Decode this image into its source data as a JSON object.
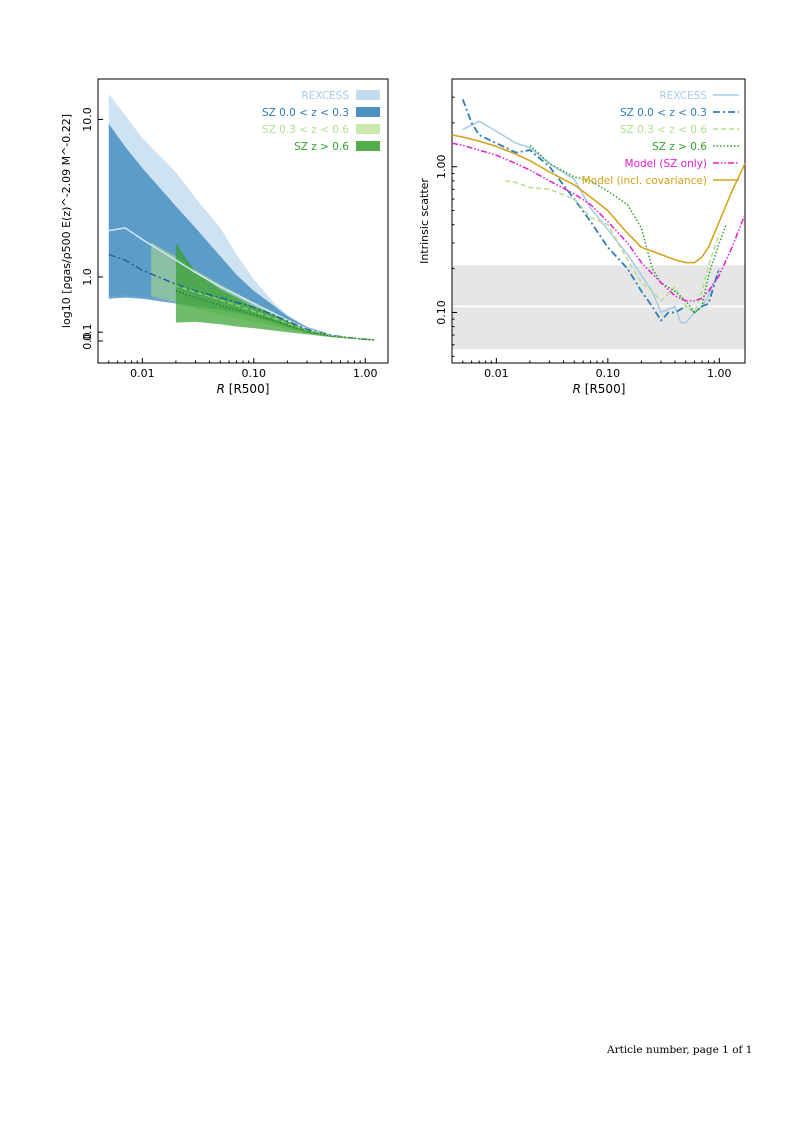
{
  "page": {
    "footer": "Article number, page 1 of 1"
  },
  "colors": {
    "rexcess": "#a6cbe6",
    "sz_low": "#2c7fb8",
    "sz_mid": "#b2df8a",
    "sz_high": "#33a02c",
    "model_sz": "#e71bd0",
    "model_cov": "#d4a017",
    "gray_band": "#e6e6e6"
  },
  "chart_data": [
    {
      "type": "area",
      "xlabel_main": "R",
      "xlabel_unit": "[R500]",
      "ylabel": "log10 [ρgas/ρ500 E(z)^-2.09 M^-0.22]",
      "xscale": "log",
      "yscale": "log",
      "xlim": [
        0.004,
        1.6
      ],
      "ylim": [
        0.0,
        10.0
      ],
      "x_ticks": [
        "0.01",
        "0.10",
        "1.00"
      ],
      "y_ticks": [
        "0.0",
        "0.1",
        "1.0",
        "10.0"
      ],
      "legend_position": "top-right",
      "series": [
        {
          "name": "REXCESS",
          "style": "band",
          "x": [
            0.005,
            0.007,
            0.01,
            0.02,
            0.03,
            0.05,
            0.07,
            0.1,
            0.15,
            0.2,
            0.3,
            0.5,
            0.7,
            1.0,
            1.2
          ],
          "upper": [
            13.5,
            10.5,
            8.0,
            5.2,
            3.7,
            2.4,
            1.55,
            0.95,
            0.52,
            0.33,
            0.17,
            0.075,
            0.045,
            0.022,
            0.015
          ],
          "lower": [
            0.62,
            0.64,
            0.62,
            0.55,
            0.48,
            0.4,
            0.35,
            0.3,
            0.23,
            0.17,
            0.1,
            0.05,
            0.032,
            0.017,
            0.012
          ],
          "median": [
            2.3,
            2.4,
            2.0,
            1.4,
            1.1,
            0.8,
            0.65,
            0.5,
            0.35,
            0.25,
            0.14,
            0.065,
            0.04,
            0.02,
            0.014
          ]
        },
        {
          "name": "SZ 0.0 < z < 0.3",
          "style": "band",
          "x": [
            0.005,
            0.007,
            0.01,
            0.02,
            0.03,
            0.05,
            0.07,
            0.1,
            0.15,
            0.2,
            0.3,
            0.5,
            0.7,
            1.0,
            1.2
          ],
          "upper": [
            9.5,
            7.2,
            5.5,
            3.3,
            2.4,
            1.5,
            1.05,
            0.72,
            0.47,
            0.31,
            0.16,
            0.072,
            0.043,
            0.021,
            0.015
          ],
          "lower": [
            0.58,
            0.6,
            0.58,
            0.5,
            0.45,
            0.4,
            0.36,
            0.3,
            0.22,
            0.16,
            0.095,
            0.048,
            0.031,
            0.016,
            0.011
          ],
          "median": [
            1.55,
            1.4,
            1.15,
            0.85,
            0.72,
            0.6,
            0.52,
            0.44,
            0.33,
            0.24,
            0.135,
            0.062,
            0.038,
            0.019,
            0.013
          ]
        },
        {
          "name": "SZ 0.3 < z < 0.6",
          "style": "band",
          "x": [
            0.012,
            0.02,
            0.03,
            0.05,
            0.07,
            0.1,
            0.15,
            0.2,
            0.3,
            0.5,
            0.7,
            1.0,
            1.2
          ],
          "upper": [
            1.9,
            1.5,
            1.15,
            0.85,
            0.68,
            0.52,
            0.37,
            0.27,
            0.15,
            0.068,
            0.042,
            0.021,
            0.014
          ],
          "lower": [
            0.62,
            0.52,
            0.42,
            0.33,
            0.28,
            0.23,
            0.18,
            0.14,
            0.088,
            0.045,
            0.03,
            0.016,
            0.011
          ],
          "median": [
            0.92,
            0.82,
            0.7,
            0.56,
            0.47,
            0.38,
            0.28,
            0.21,
            0.12,
            0.057,
            0.036,
            0.018,
            0.012
          ]
        },
        {
          "name": "SZ z > 0.6",
          "style": "band",
          "x": [
            0.02,
            0.03,
            0.05,
            0.07,
            0.1,
            0.15,
            0.2,
            0.3,
            0.5,
            0.7,
            1.0,
            1.2
          ],
          "upper": [
            1.9,
            1.1,
            0.75,
            0.6,
            0.45,
            0.33,
            0.25,
            0.145,
            0.07,
            0.046,
            0.028,
            0.018
          ],
          "lower": [
            0.22,
            0.23,
            0.2,
            0.17,
            0.15,
            0.12,
            0.1,
            0.075,
            0.042,
            0.029,
            0.014,
            0.009
          ],
          "median": [
            0.72,
            0.6,
            0.47,
            0.4,
            0.33,
            0.25,
            0.19,
            0.11,
            0.055,
            0.035,
            0.018,
            0.012
          ]
        }
      ]
    },
    {
      "type": "line",
      "xlabel_main": "R",
      "xlabel_unit": "[R500]",
      "ylabel": "Intrinsic scatter",
      "xscale": "log",
      "yscale": "log",
      "xlim": [
        0.004,
        1.7
      ],
      "ylim": [
        0.045,
        4.0
      ],
      "x_ticks": [
        "0.01",
        "0.10",
        "1.00"
      ],
      "y_ticks": [
        "0.10",
        "1.00"
      ],
      "legend_position": "top-right",
      "reference_band": {
        "center": 0.11,
        "lower": 0.056,
        "upper": 0.21
      },
      "series": [
        {
          "name": "REXCESS",
          "style": "solid",
          "x": [
            0.005,
            0.007,
            0.01,
            0.015,
            0.02,
            0.03,
            0.05,
            0.07,
            0.1,
            0.15,
            0.2,
            0.25,
            0.3,
            0.4,
            0.45,
            0.5,
            0.6,
            0.7,
            0.8,
            1.0
          ],
          "y": [
            1.8,
            2.05,
            1.75,
            1.45,
            1.35,
            1.05,
            0.82,
            0.52,
            0.37,
            0.25,
            0.18,
            0.14,
            0.1,
            0.11,
            0.085,
            0.085,
            0.1,
            0.11,
            0.13,
            0.2
          ]
        },
        {
          "name": "SZ 0.0 < z < 0.3",
          "style": "dashdot",
          "x": [
            0.005,
            0.006,
            0.007,
            0.01,
            0.015,
            0.02,
            0.03,
            0.05,
            0.07,
            0.1,
            0.15,
            0.2,
            0.25,
            0.3,
            0.35,
            0.4,
            0.5,
            0.6,
            0.7,
            0.8,
            1.0
          ],
          "y": [
            2.9,
            2.0,
            1.65,
            1.45,
            1.25,
            1.3,
            1.0,
            0.6,
            0.42,
            0.28,
            0.2,
            0.14,
            0.11,
            0.088,
            0.1,
            0.1,
            0.11,
            0.1,
            0.11,
            0.115,
            0.2
          ]
        },
        {
          "name": "SZ 0.3 < z < 0.6",
          "style": "dashed",
          "x": [
            0.012,
            0.015,
            0.02,
            0.03,
            0.05,
            0.07,
            0.1,
            0.15,
            0.2,
            0.25,
            0.3,
            0.4,
            0.5,
            0.6,
            0.7,
            0.8,
            1.0
          ],
          "y": [
            0.8,
            0.78,
            0.72,
            0.7,
            0.6,
            0.45,
            0.4,
            0.23,
            0.16,
            0.14,
            0.12,
            0.15,
            0.11,
            0.1,
            0.14,
            0.21,
            0.35
          ]
        },
        {
          "name": "SZ z > 0.6",
          "style": "dotted",
          "x": [
            0.02,
            0.025,
            0.03,
            0.05,
            0.07,
            0.1,
            0.15,
            0.2,
            0.25,
            0.3,
            0.4,
            0.5,
            0.6,
            0.7,
            0.8,
            1.0,
            1.15
          ],
          "y": [
            1.4,
            1.2,
            1.05,
            0.85,
            0.8,
            0.68,
            0.55,
            0.38,
            0.2,
            0.16,
            0.14,
            0.12,
            0.1,
            0.11,
            0.18,
            0.3,
            0.4
          ]
        },
        {
          "name": "Model (SZ only)",
          "style": "dashdotdot",
          "x": [
            0.004,
            0.005,
            0.007,
            0.01,
            0.015,
            0.02,
            0.03,
            0.05,
            0.07,
            0.1,
            0.15,
            0.2,
            0.3,
            0.4,
            0.5,
            0.6,
            0.7,
            0.8,
            1.0,
            1.3,
            1.7
          ],
          "y": [
            1.45,
            1.4,
            1.3,
            1.2,
            1.05,
            0.95,
            0.8,
            0.65,
            0.55,
            0.42,
            0.3,
            0.22,
            0.16,
            0.13,
            0.12,
            0.12,
            0.125,
            0.14,
            0.18,
            0.28,
            0.47
          ]
        },
        {
          "name": "Model (incl. covariance)",
          "style": "solid",
          "x": [
            0.004,
            0.005,
            0.007,
            0.01,
            0.015,
            0.02,
            0.03,
            0.05,
            0.07,
            0.1,
            0.15,
            0.2,
            0.3,
            0.4,
            0.5,
            0.6,
            0.7,
            0.8,
            1.0,
            1.3,
            1.7
          ],
          "y": [
            1.65,
            1.6,
            1.5,
            1.38,
            1.22,
            1.1,
            0.92,
            0.75,
            0.62,
            0.5,
            0.35,
            0.28,
            0.25,
            0.23,
            0.22,
            0.22,
            0.24,
            0.28,
            0.42,
            0.68,
            1.05
          ]
        }
      ]
    }
  ]
}
